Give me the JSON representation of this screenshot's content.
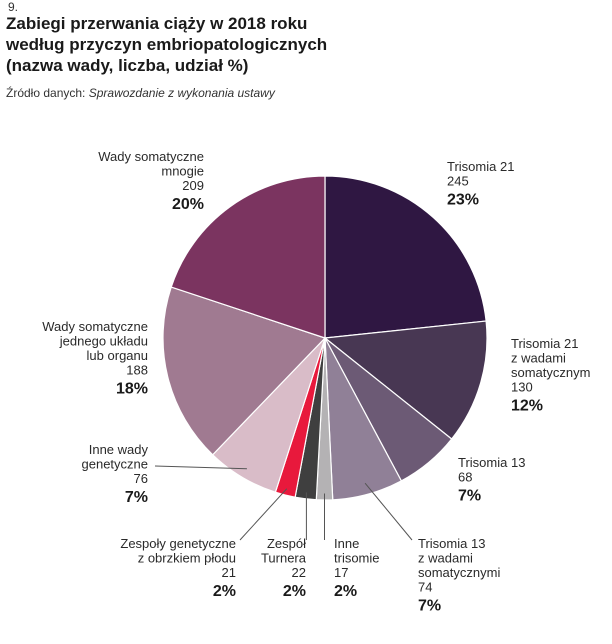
{
  "figure_number": "9.",
  "title_lines": [
    "Zabiegi przerwania ciąży w 2018 roku",
    "według przyczyn embriopatologicznych",
    "(nazwa wady, liczba, udział %)"
  ],
  "source_label": "Źródło danych:",
  "source_value": "Sprawozdanie z wykonania ustawy",
  "chart_data": {
    "type": "pie",
    "title": "Zabiegi przerwania ciąży w 2018 roku według przyczyn embriopatologicznych (nazwa wady, liczba, udział %)",
    "start_angle_deg": 0,
    "direction": "clockwise",
    "slices": [
      {
        "label_lines": [
          "Trisomia 21"
        ],
        "value": 245,
        "value_label": "245",
        "percent_label": "23%",
        "color": "#2f1742"
      },
      {
        "label_lines": [
          "Trisomia 21",
          "z wadami",
          "somatycznym"
        ],
        "value": 130,
        "value_label": "130",
        "percent_label": "12%",
        "color": "#483753"
      },
      {
        "label_lines": [
          "Trisomia 13"
        ],
        "value": 68,
        "value_label": "68",
        "percent_label": "7%",
        "color": "#6c5a75"
      },
      {
        "label_lines": [
          "Trisomia 13",
          "z wadami",
          "somatycznymi"
        ],
        "value": 74,
        "value_label": "74",
        "percent_label": "7%",
        "color": "#908097"
      },
      {
        "label_lines": [
          "Inne",
          "trisomie"
        ],
        "value": 17,
        "value_label": "17",
        "percent_label": "2%",
        "color": "#b4b2b4"
      },
      {
        "label_lines": [
          "Zespół",
          "Turnera"
        ],
        "value": 22,
        "value_label": "22",
        "percent_label": "2%",
        "color": "#3f3f3f"
      },
      {
        "label_lines": [
          "Zespoły genetyczne",
          "z obrzkiem płodu"
        ],
        "value": 21,
        "value_label": "21",
        "percent_label": "2%",
        "color": "#e8193c"
      },
      {
        "label_lines": [
          "Inne wady",
          "genetyczne"
        ],
        "value": 76,
        "value_label": "76",
        "percent_label": "7%",
        "color": "#d9bcc8"
      },
      {
        "label_lines": [
          "Wady somatyczne",
          "jednego układu",
          "lub organu"
        ],
        "value": 188,
        "value_label": "188",
        "percent_label": "18%",
        "color": "#a07a91"
      },
      {
        "label_lines": [
          "Wady somatyczne",
          "mnogie"
        ],
        "value": 209,
        "value_label": "209",
        "percent_label": "20%",
        "color": "#7b3460"
      }
    ]
  }
}
